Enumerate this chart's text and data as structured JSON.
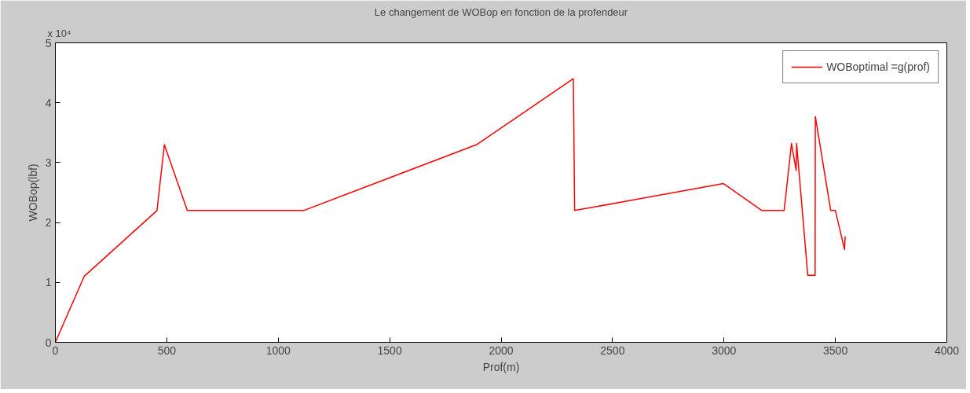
{
  "chart_data": {
    "type": "line",
    "title": "Le changement de WOBop en fonction de la profendeur",
    "xlabel": "Prof(m)",
    "ylabel": "WOBop(lbf)",
    "annotations": [
      "x 10⁴"
    ],
    "x": [
      0,
      129,
      456,
      489,
      592,
      1114,
      1890,
      2324,
      2330,
      2998,
      3170,
      3270,
      3303,
      3324,
      3326,
      3376,
      3409,
      3410,
      3479,
      3500,
      3541,
      3544
    ],
    "series": [
      {
        "name": "WOBoptimal =g(prof)",
        "color": "#ff0000",
        "values": [
          0,
          1.1,
          2.2,
          3.3,
          2.2,
          2.2,
          3.3,
          4.4,
          2.2,
          2.65,
          2.2,
          2.2,
          3.32,
          2.87,
          3.32,
          1.12,
          1.12,
          3.77,
          2.2,
          2.2,
          1.55,
          1.77
        ]
      }
    ],
    "xlim": [
      0,
      4000
    ],
    "xticks": [
      0,
      500,
      1000,
      1500,
      2000,
      2500,
      3000,
      3500,
      4000
    ],
    "ylim": [
      0,
      5
    ],
    "yticks": [
      0,
      1,
      2,
      3,
      4,
      5
    ],
    "grid": false,
    "legend": "top right",
    "marker": "none",
    "line_style": "solid"
  }
}
